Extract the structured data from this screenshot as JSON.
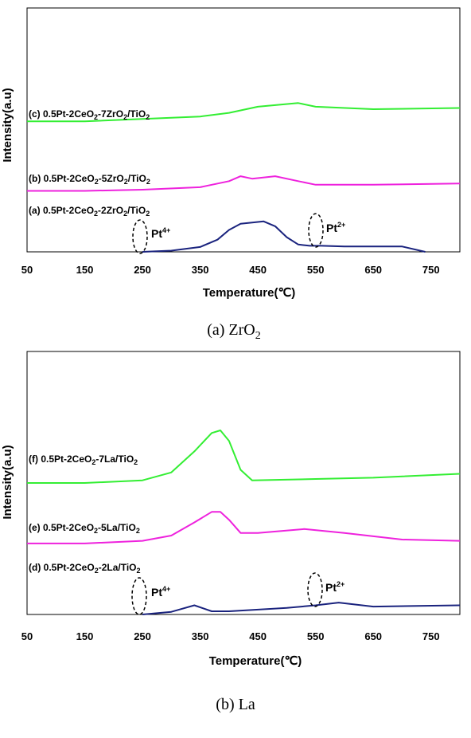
{
  "chart_data": [
    {
      "type": "line",
      "caption": "(a)  ZrO2",
      "xlabel": "Temperature(℃)",
      "ylabel": "Intensity(a.u)",
      "xlim": [
        50,
        800
      ],
      "x_ticks": [
        "50",
        "150",
        "250",
        "350",
        "450",
        "550",
        "650",
        "750"
      ],
      "series": [
        {
          "name": "(c) 0.5Pt-2CeO2-7ZrO2/TiO2",
          "color": "#33ee33",
          "points": [
            [
              50,
              0.535
            ],
            [
              150,
              0.535
            ],
            [
              250,
              0.545
            ],
            [
              350,
              0.555
            ],
            [
              400,
              0.57
            ],
            [
              450,
              0.595
            ],
            [
              520,
              0.61
            ],
            [
              550,
              0.595
            ],
            [
              650,
              0.585
            ],
            [
              800,
              0.59
            ]
          ]
        },
        {
          "name": "(b) 0.5Pt-2CeO2-5ZrO2/TiO2",
          "color": "#ee22dd",
          "points": [
            [
              50,
              0.25
            ],
            [
              150,
              0.25
            ],
            [
              250,
              0.255
            ],
            [
              350,
              0.265
            ],
            [
              400,
              0.29
            ],
            [
              420,
              0.31
            ],
            [
              440,
              0.3
            ],
            [
              480,
              0.31
            ],
            [
              520,
              0.29
            ],
            [
              550,
              0.275
            ],
            [
              650,
              0.275
            ],
            [
              800,
              0.28
            ]
          ]
        },
        {
          "name": "(a) 0.5Pt-2CeO2-2ZrO2/TiO2",
          "color": "#1a237e",
          "points": [
            [
              250,
              0.0
            ],
            [
              300,
              0.005
            ],
            [
              350,
              0.02
            ],
            [
              380,
              0.05
            ],
            [
              400,
              0.09
            ],
            [
              420,
              0.115
            ],
            [
              440,
              0.12
            ],
            [
              460,
              0.125
            ],
            [
              480,
              0.105
            ],
            [
              500,
              0.06
            ],
            [
              520,
              0.03
            ],
            [
              540,
              0.025
            ],
            [
              560,
              0.025
            ],
            [
              600,
              0.022
            ],
            [
              700,
              0.022
            ],
            [
              740,
              0.0
            ]
          ]
        }
      ],
      "annotations": [
        "Pt4+",
        "Pt2+"
      ]
    },
    {
      "type": "line",
      "caption": "(b)  La",
      "xlabel": "Temperature(℃)",
      "ylabel": "Intensity(a.u)",
      "xlim": [
        50,
        800
      ],
      "x_ticks": [
        "50",
        "150",
        "250",
        "350",
        "450",
        "550",
        "650",
        "750"
      ],
      "series": [
        {
          "name": "(f) 0.5Pt-2CeO2-7La/TiO2",
          "color": "#33ee33",
          "points": [
            [
              50,
              0.5
            ],
            [
              150,
              0.5
            ],
            [
              250,
              0.51
            ],
            [
              300,
              0.54
            ],
            [
              340,
              0.62
            ],
            [
              370,
              0.69
            ],
            [
              385,
              0.7
            ],
            [
              400,
              0.66
            ],
            [
              420,
              0.55
            ],
            [
              440,
              0.51
            ],
            [
              550,
              0.515
            ],
            [
              650,
              0.52
            ],
            [
              800,
              0.535
            ]
          ]
        },
        {
          "name": "(e) 0.5Pt-2CeO2-5La/TiO2",
          "color": "#ee22dd",
          "points": [
            [
              50,
              0.27
            ],
            [
              150,
              0.27
            ],
            [
              250,
              0.28
            ],
            [
              300,
              0.3
            ],
            [
              340,
              0.35
            ],
            [
              370,
              0.39
            ],
            [
              385,
              0.39
            ],
            [
              400,
              0.36
            ],
            [
              420,
              0.31
            ],
            [
              450,
              0.31
            ],
            [
              530,
              0.325
            ],
            [
              600,
              0.31
            ],
            [
              700,
              0.285
            ],
            [
              800,
              0.28
            ]
          ]
        },
        {
          "name": "(d) 0.5Pt-2CeO2-2La/TiO2",
          "color": "#1a237e",
          "points": [
            [
              250,
              0.0
            ],
            [
              300,
              0.01
            ],
            [
              340,
              0.035
            ],
            [
              370,
              0.012
            ],
            [
              400,
              0.012
            ],
            [
              500,
              0.025
            ],
            [
              550,
              0.035
            ],
            [
              590,
              0.045
            ],
            [
              650,
              0.03
            ],
            [
              800,
              0.035
            ]
          ]
        }
      ],
      "annotations": [
        "Pt4+",
        "Pt2+"
      ]
    }
  ]
}
